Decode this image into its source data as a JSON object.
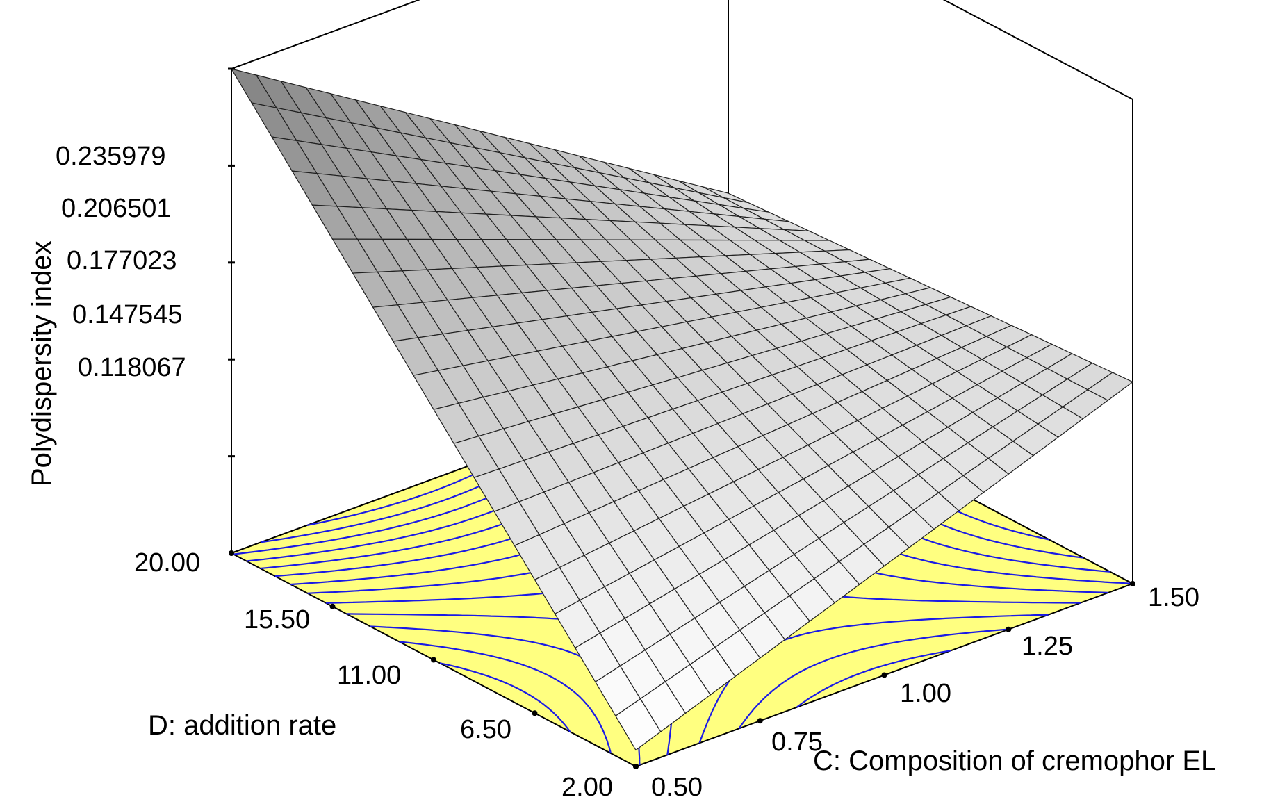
{
  "chart_data": {
    "type": "surface3d",
    "z_axis": {
      "title": "Polydispersity index",
      "ticks": [
        "0.235979",
        "0.206501",
        "0.177023",
        "0.147545",
        "0.118067"
      ],
      "values": [
        0.235979,
        0.206501,
        0.177023,
        0.147545,
        0.118067
      ],
      "range": [
        0.0886,
        0.235979
      ]
    },
    "x_axis": {
      "title": "C: Composition of cremophor EL",
      "ticks": [
        "0.50",
        "0.75",
        "1.00",
        "1.25",
        "1.50"
      ],
      "values": [
        0.5,
        0.75,
        1.0,
        1.25,
        1.5
      ],
      "range": [
        0.5,
        1.5
      ]
    },
    "y_axis": {
      "title": "D: addition rate",
      "ticks": [
        "2.00",
        "6.50",
        "11.00",
        "15.50",
        "20.00"
      ],
      "values": [
        2.0,
        6.5,
        11.0,
        15.5,
        20.0
      ],
      "range": [
        2.0,
        20.0
      ]
    },
    "surface_corners": [
      {
        "C": 0.5,
        "D": 20.0,
        "PDI": 0.235979
      },
      {
        "C": 1.5,
        "D": 20.0,
        "PDI": 0.1425
      },
      {
        "C": 1.5,
        "D": 2.0,
        "PDI": 0.15
      },
      {
        "C": 0.5,
        "D": 2.0,
        "PDI": 0.0936
      }
    ],
    "grid_divisions": 20,
    "contour_floor": true,
    "colors": {
      "floor": "#ffff80",
      "contour": "#1a1ae6",
      "surface_light": "#ffffff",
      "surface_dark": "#808080",
      "mesh": "#202020"
    }
  }
}
